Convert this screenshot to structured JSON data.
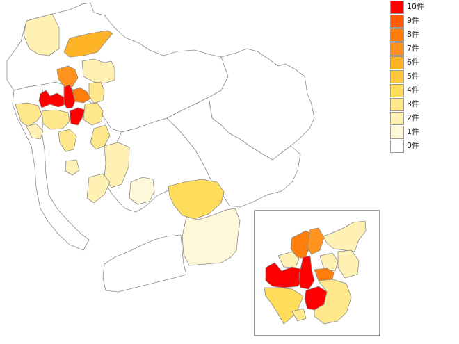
{
  "legend": {
    "items": [
      {
        "label": "10件",
        "color": "#ff0000"
      },
      {
        "label": "9件",
        "color": "#ff5a00"
      },
      {
        "label": "8件",
        "color": "#ff7d0a"
      },
      {
        "label": "7件",
        "color": "#ff931e"
      },
      {
        "label": "6件",
        "color": "#ffb428"
      },
      {
        "label": "5件",
        "color": "#ffc83c"
      },
      {
        "label": "4件",
        "color": "#ffdc5a"
      },
      {
        "label": "3件",
        "color": "#ffe88c"
      },
      {
        "label": "2件",
        "color": "#fff0b4"
      },
      {
        "label": "1件",
        "color": "#fff8d8"
      },
      {
        "label": "0件",
        "color": "#ffffff"
      }
    ]
  },
  "map": {
    "regions": [
      {
        "name": "north-hills",
        "value": 0
      },
      {
        "name": "northeast-mountains",
        "value": 0
      },
      {
        "name": "east-hills",
        "value": 0
      },
      {
        "name": "central-plain",
        "value": 0
      },
      {
        "name": "northwest-town-a",
        "value": 2
      },
      {
        "name": "north-town-b",
        "value": 6
      },
      {
        "name": "north-town-c",
        "value": 2
      },
      {
        "name": "north-town-d",
        "value": 3
      },
      {
        "name": "north-city-e",
        "value": 7
      },
      {
        "name": "north-city-f",
        "value": 8
      },
      {
        "name": "central-city-west",
        "value": 10
      },
      {
        "name": "central-city-core",
        "value": 10
      },
      {
        "name": "central-city-south",
        "value": 10
      },
      {
        "name": "central-east-g",
        "value": 3
      },
      {
        "name": "west-town-h",
        "value": 3
      },
      {
        "name": "west-town-i",
        "value": 2
      },
      {
        "name": "south-town-j",
        "value": 3
      },
      {
        "name": "south-town-k",
        "value": 3
      },
      {
        "name": "south-town-l",
        "value": 3
      },
      {
        "name": "south-town-m",
        "value": 2
      },
      {
        "name": "south-town-n",
        "value": 2
      },
      {
        "name": "mid-town-o",
        "value": 2
      },
      {
        "name": "southeast-city-p",
        "value": 4
      },
      {
        "name": "southeast-city-q",
        "value": 1
      },
      {
        "name": "peninsula",
        "value": 0
      },
      {
        "name": "coast-southwest",
        "value": 0
      }
    ],
    "inset_regions": [
      {
        "name": "inset-north-a",
        "value": 8
      },
      {
        "name": "inset-north-b",
        "value": 7
      },
      {
        "name": "inset-northeast",
        "value": 2
      },
      {
        "name": "inset-east-a",
        "value": 2
      },
      {
        "name": "inset-east-b",
        "value": 2
      },
      {
        "name": "inset-center-west",
        "value": 10
      },
      {
        "name": "inset-center",
        "value": 10
      },
      {
        "name": "inset-center-east",
        "value": 8
      },
      {
        "name": "inset-west",
        "value": 4
      },
      {
        "name": "inset-south",
        "value": 10
      },
      {
        "name": "inset-southwest",
        "value": 3
      },
      {
        "name": "inset-southeast",
        "value": 3
      },
      {
        "name": "inset-mid",
        "value": 2
      }
    ]
  }
}
